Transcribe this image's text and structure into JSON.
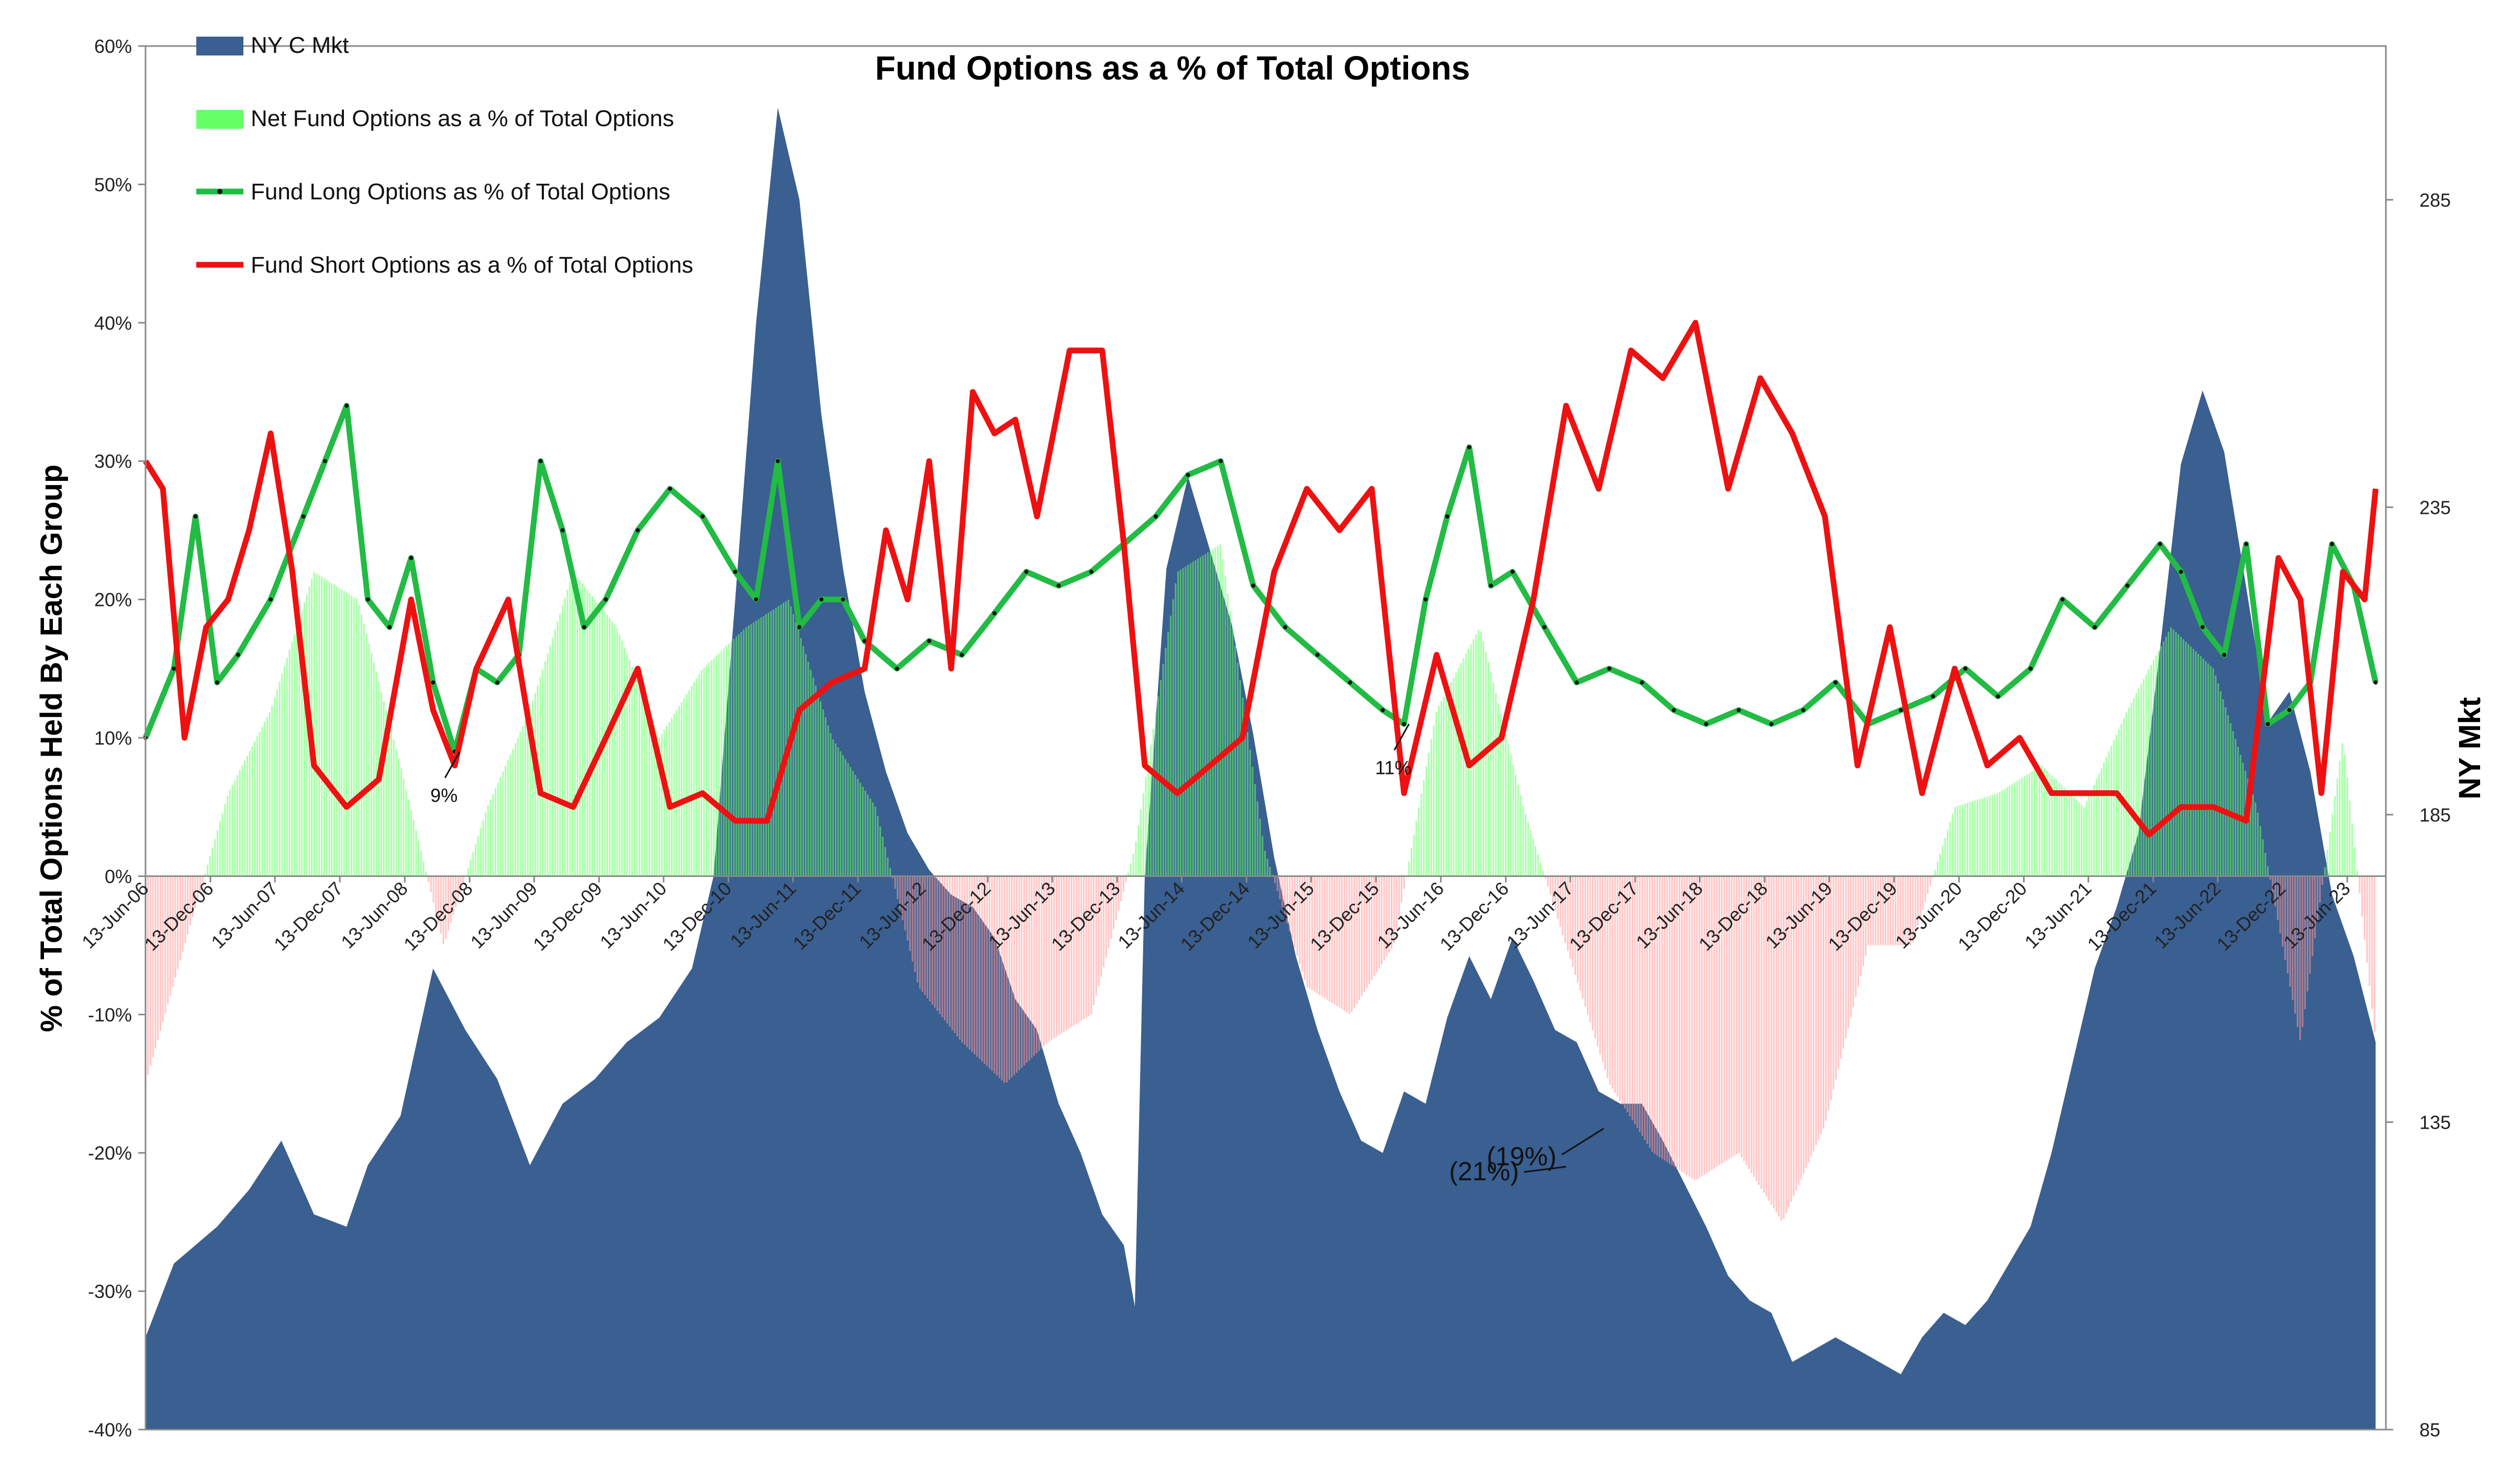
{
  "chart_data": {
    "type": "area",
    "title": "Fund Options as a % of Total Options",
    "ylabel": "% of Total Options Held By Each Group",
    "y2label": "NY Mkt",
    "ylim": [
      -0.4,
      0.6
    ],
    "y2lim": [
      85,
      310
    ],
    "yticks": [
      -0.4,
      -0.3,
      -0.2,
      -0.1,
      0,
      0.1,
      0.2,
      0.3,
      0.4,
      0.5,
      0.6
    ],
    "ytick_labels": [
      "-40%",
      "-30%",
      "-20%",
      "-10%",
      "0%",
      "10%",
      "20%",
      "30%",
      "40%",
      "50%",
      "60%"
    ],
    "y2ticks": [
      85,
      135,
      185,
      235,
      285
    ],
    "y2tick_labels": [
      "85",
      "135",
      "185",
      "235",
      "285"
    ],
    "xlim": [
      "2006-06-13",
      "2023-09-30"
    ],
    "x_ticks": [
      "2006-06-13",
      "2006-12-13",
      "2007-06-13",
      "2007-12-13",
      "2008-06-13",
      "2008-12-13",
      "2009-06-13",
      "2009-12-13",
      "2010-06-13",
      "2010-12-13",
      "2011-06-13",
      "2011-12-13",
      "2012-06-13",
      "2012-12-13",
      "2013-06-13",
      "2013-12-13",
      "2014-06-13",
      "2014-12-13",
      "2015-06-13",
      "2015-12-13",
      "2016-06-13",
      "2016-12-13",
      "2017-06-13",
      "2017-12-13",
      "2018-06-13",
      "2018-12-13",
      "2019-06-13",
      "2019-12-13",
      "2020-06-13",
      "2020-12-13",
      "2021-06-13",
      "2021-12-13",
      "2022-06-13",
      "2022-12-13",
      "2023-06-13"
    ],
    "x_tick_labels": [
      "13-Jun-06",
      "13-Dec-06",
      "13-Jun-07",
      "13-Dec-07",
      "13-Jun-08",
      "13-Dec-08",
      "13-Jun-09",
      "13-Dec-09",
      "13-Jun-10",
      "13-Dec-10",
      "13-Jun-11",
      "13-Dec-11",
      "13-Jun-12",
      "13-Dec-12",
      "13-Jun-13",
      "13-Dec-13",
      "13-Jun-14",
      "13-Dec-14",
      "13-Jun-15",
      "13-Dec-15",
      "13-Jun-16",
      "13-Dec-16",
      "13-Jun-17",
      "13-Dec-17",
      "13-Jun-18",
      "13-Dec-18",
      "13-Jun-19",
      "13-Dec-19",
      "13-Jun-20",
      "13-Dec-20",
      "13-Jun-21",
      "13-Dec-21",
      "13-Jun-22",
      "13-Dec-22",
      "13-Jun-23"
    ],
    "legend_position": "top-left",
    "grid": false,
    "series": [
      {
        "name": "NY C Mkt",
        "type": "area",
        "axis": "right",
        "color": "#3a5f91",
        "x": [
          "2006-06-13",
          "2006-09-01",
          "2007-01-01",
          "2007-04-01",
          "2007-07-01",
          "2007-10-01",
          "2008-01-01",
          "2008-03-01",
          "2008-06-01",
          "2008-09-01",
          "2008-12-01",
          "2009-03-01",
          "2009-06-01",
          "2009-09-01",
          "2009-12-01",
          "2010-03-01",
          "2010-06-01",
          "2010-09-01",
          "2010-11-01",
          "2011-01-01",
          "2011-03-01",
          "2011-05-01",
          "2011-07-01",
          "2011-09-01",
          "2011-11-01",
          "2012-01-01",
          "2012-03-01",
          "2012-05-01",
          "2012-07-01",
          "2012-09-01",
          "2012-11-01",
          "2013-01-01",
          "2013-03-01",
          "2013-05-01",
          "2013-07-01",
          "2013-09-01",
          "2013-11-01",
          "2014-01-01",
          "2014-02-01",
          "2014-03-01",
          "2014-05-01",
          "2014-07-01",
          "2014-09-01",
          "2014-11-01",
          "2015-01-01",
          "2015-03-01",
          "2015-05-01",
          "2015-07-01",
          "2015-09-01",
          "2015-11-01",
          "2016-01-01",
          "2016-03-01",
          "2016-05-01",
          "2016-07-01",
          "2016-09-01",
          "2016-11-01",
          "2017-01-01",
          "2017-03-01",
          "2017-05-01",
          "2017-07-01",
          "2017-09-01",
          "2017-11-01",
          "2018-01-01",
          "2018-03-01",
          "2018-05-01",
          "2018-07-01",
          "2018-09-01",
          "2018-11-01",
          "2019-01-01",
          "2019-03-01",
          "2019-05-01",
          "2019-07-01",
          "2019-09-01",
          "2019-11-01",
          "2020-01-01",
          "2020-03-01",
          "2020-05-01",
          "2020-07-01",
          "2020-09-01",
          "2020-11-01",
          "2021-01-01",
          "2021-03-01",
          "2021-05-01",
          "2021-07-01",
          "2021-09-01",
          "2021-11-01",
          "2022-01-01",
          "2022-03-01",
          "2022-05-01",
          "2022-07-01",
          "2022-09-01",
          "2022-11-01",
          "2023-01-01",
          "2023-03-01",
          "2023-05-01",
          "2023-07-01",
          "2023-09-01"
        ],
        "values": [
          100,
          112,
          118,
          124,
          132,
          120,
          118,
          128,
          136,
          160,
          150,
          142,
          128,
          138,
          142,
          148,
          152,
          160,
          175,
          220,
          265,
          300,
          285,
          250,
          225,
          205,
          192,
          182,
          176,
          172,
          170,
          165,
          155,
          150,
          138,
          130,
          120,
          115,
          105,
          175,
          225,
          240,
          228,
          216,
          198,
          178,
          162,
          150,
          140,
          132,
          130,
          140,
          138,
          152,
          162,
          155,
          165,
          158,
          150,
          148,
          140,
          138,
          138,
          132,
          125,
          118,
          110,
          106,
          104,
          96,
          98,
          100,
          98,
          96,
          94,
          100,
          104,
          102,
          106,
          112,
          118,
          130,
          145,
          160,
          170,
          182,
          212,
          242,
          254,
          244,
          222,
          200,
          205,
          192,
          172,
          162,
          148
        ]
      },
      {
        "name": "Net Fund Options as a % of Total Options",
        "type": "bar",
        "axis": "left",
        "positive_color": "#66ff66",
        "negative_color": "#ff9999",
        "x": [
          "2006-06-13",
          "2006-10-01",
          "2007-02-01",
          "2007-06-01",
          "2007-10-01",
          "2008-02-01",
          "2008-06-01",
          "2008-10-01",
          "2009-02-01",
          "2009-06-01",
          "2009-10-01",
          "2010-02-01",
          "2010-06-01",
          "2010-10-01",
          "2011-02-01",
          "2011-06-01",
          "2011-10-01",
          "2012-02-01",
          "2012-06-01",
          "2012-10-01",
          "2013-02-01",
          "2013-06-01",
          "2013-10-01",
          "2014-02-01",
          "2014-06-01",
          "2014-10-01",
          "2015-02-01",
          "2015-06-01",
          "2015-10-01",
          "2016-02-01",
          "2016-06-01",
          "2016-10-01",
          "2017-02-01",
          "2017-06-01",
          "2017-10-01",
          "2018-02-01",
          "2018-06-01",
          "2018-10-01",
          "2019-02-01",
          "2019-06-01",
          "2019-10-01",
          "2020-02-01",
          "2020-06-01",
          "2020-10-01",
          "2021-02-01",
          "2021-06-01",
          "2021-10-01",
          "2022-02-01",
          "2022-06-01",
          "2022-10-01",
          "2023-02-01",
          "2023-06-01",
          "2023-09-01"
        ],
        "values": [
          -0.15,
          -0.05,
          0.06,
          0.12,
          0.22,
          0.2,
          0.08,
          -0.05,
          0.05,
          0.12,
          0.22,
          0.18,
          0.1,
          0.15,
          0.18,
          0.2,
          0.1,
          0.05,
          -0.08,
          -0.12,
          -0.15,
          -0.12,
          -0.1,
          0.02,
          0.22,
          0.24,
          0.02,
          -0.08,
          -0.1,
          -0.05,
          0.12,
          0.18,
          0.05,
          -0.05,
          -0.15,
          -0.2,
          -0.22,
          -0.2,
          -0.25,
          -0.18,
          -0.05,
          -0.05,
          0.05,
          0.06,
          0.08,
          0.05,
          0.12,
          0.18,
          0.15,
          0.05,
          -0.12,
          0.1,
          -0.12
        ]
      },
      {
        "name": "Fund Long Options as % of Total Options",
        "type": "line",
        "axis": "left",
        "color": "#22bb44",
        "x": [
          "2006-06-13",
          "2006-09-01",
          "2006-11-01",
          "2007-01-01",
          "2007-03-01",
          "2007-06-01",
          "2007-09-01",
          "2007-11-01",
          "2008-01-01",
          "2008-03-01",
          "2008-05-01",
          "2008-07-01",
          "2008-09-01",
          "2008-11-01",
          "2009-01-01",
          "2009-03-01",
          "2009-05-01",
          "2009-07-01",
          "2009-09-01",
          "2009-11-01",
          "2010-01-01",
          "2010-04-01",
          "2010-07-01",
          "2010-10-01",
          "2011-01-01",
          "2011-03-01",
          "2011-05-01",
          "2011-07-01",
          "2011-09-01",
          "2011-11-01",
          "2012-01-01",
          "2012-04-01",
          "2012-07-01",
          "2012-10-01",
          "2013-01-01",
          "2013-04-01",
          "2013-07-01",
          "2013-10-01",
          "2014-01-01",
          "2014-04-01",
          "2014-07-01",
          "2014-10-01",
          "2015-01-01",
          "2015-04-01",
          "2015-07-01",
          "2015-10-01",
          "2016-01-01",
          "2016-03-01",
          "2016-05-01",
          "2016-07-01",
          "2016-09-01",
          "2016-11-01",
          "2017-01-01",
          "2017-04-01",
          "2017-07-01",
          "2017-10-01",
          "2018-01-01",
          "2018-04-01",
          "2018-07-01",
          "2018-10-01",
          "2019-01-01",
          "2019-04-01",
          "2019-07-01",
          "2019-10-01",
          "2020-01-01",
          "2020-04-01",
          "2020-07-01",
          "2020-10-01",
          "2021-01-01",
          "2021-04-01",
          "2021-07-01",
          "2021-10-01",
          "2022-01-01",
          "2022-03-01",
          "2022-05-01",
          "2022-07-01",
          "2022-09-01",
          "2022-11-01",
          "2023-01-01",
          "2023-03-01",
          "2023-05-01",
          "2023-07-01",
          "2023-09-01"
        ],
        "values": [
          0.1,
          0.15,
          0.26,
          0.14,
          0.16,
          0.2,
          0.26,
          0.3,
          0.34,
          0.2,
          0.18,
          0.23,
          0.14,
          0.09,
          0.15,
          0.14,
          0.16,
          0.3,
          0.25,
          0.18,
          0.2,
          0.25,
          0.28,
          0.26,
          0.22,
          0.2,
          0.3,
          0.18,
          0.2,
          0.2,
          0.17,
          0.15,
          0.17,
          0.16,
          0.19,
          0.22,
          0.21,
          0.22,
          0.24,
          0.26,
          0.29,
          0.3,
          0.21,
          0.18,
          0.16,
          0.14,
          0.12,
          0.11,
          0.2,
          0.26,
          0.31,
          0.21,
          0.22,
          0.18,
          0.14,
          0.15,
          0.14,
          0.12,
          0.11,
          0.12,
          0.11,
          0.12,
          0.14,
          0.11,
          0.12,
          0.13,
          0.15,
          0.13,
          0.15,
          0.2,
          0.18,
          0.21,
          0.24,
          0.22,
          0.18,
          0.16,
          0.24,
          0.11,
          0.12,
          0.14,
          0.24,
          0.21,
          0.14
        ]
      },
      {
        "name": "Fund Short Options as a % of Total Options",
        "type": "line",
        "axis": "left",
        "color": "#ee1111",
        "x": [
          "2006-06-13",
          "2006-08-01",
          "2006-10-01",
          "2006-12-01",
          "2007-02-01",
          "2007-04-01",
          "2007-06-01",
          "2007-08-01",
          "2007-10-01",
          "2008-01-01",
          "2008-04-01",
          "2008-07-01",
          "2008-09-01",
          "2008-11-01",
          "2009-01-01",
          "2009-04-01",
          "2009-07-01",
          "2009-10-01",
          "2010-01-01",
          "2010-04-01",
          "2010-07-01",
          "2010-10-01",
          "2011-01-01",
          "2011-04-01",
          "2011-07-01",
          "2011-10-01",
          "2012-01-01",
          "2012-03-01",
          "2012-05-01",
          "2012-07-01",
          "2012-09-01",
          "2012-11-01",
          "2013-01-01",
          "2013-03-01",
          "2013-05-01",
          "2013-08-01",
          "2013-11-01",
          "2014-01-01",
          "2014-03-01",
          "2014-06-01",
          "2014-09-01",
          "2014-12-01",
          "2015-03-01",
          "2015-06-01",
          "2015-09-01",
          "2015-12-01",
          "2016-03-01",
          "2016-06-01",
          "2016-09-01",
          "2016-12-01",
          "2017-03-01",
          "2017-06-01",
          "2017-09-01",
          "2017-12-01",
          "2018-03-01",
          "2018-06-01",
          "2018-09-01",
          "2018-12-01",
          "2019-03-01",
          "2019-06-01",
          "2019-09-01",
          "2019-12-01",
          "2020-03-01",
          "2020-06-01",
          "2020-09-01",
          "2020-12-01",
          "2021-03-01",
          "2021-06-01",
          "2021-09-01",
          "2021-12-01",
          "2022-03-01",
          "2022-06-01",
          "2022-09-01",
          "2022-12-01",
          "2023-02-01",
          "2023-04-01",
          "2023-06-01",
          "2023-08-01",
          "2023-09-01"
        ],
        "values": [
          0.3,
          0.28,
          0.1,
          0.18,
          0.2,
          0.25,
          0.32,
          0.22,
          0.08,
          0.05,
          0.07,
          0.2,
          0.12,
          0.08,
          0.15,
          0.2,
          0.06,
          0.05,
          0.1,
          0.15,
          0.05,
          0.06,
          0.04,
          0.04,
          0.12,
          0.14,
          0.15,
          0.25,
          0.2,
          0.3,
          0.15,
          0.35,
          0.32,
          0.33,
          0.26,
          0.38,
          0.38,
          0.24,
          0.08,
          0.06,
          0.08,
          0.1,
          0.22,
          0.28,
          0.25,
          0.28,
          0.06,
          0.16,
          0.08,
          0.1,
          0.2,
          0.34,
          0.28,
          0.38,
          0.36,
          0.4,
          0.28,
          0.36,
          0.32,
          0.26,
          0.08,
          0.18,
          0.06,
          0.15,
          0.08,
          0.1,
          0.06,
          0.06,
          0.06,
          0.03,
          0.05,
          0.05,
          0.04,
          0.23,
          0.2,
          0.06,
          0.22,
          0.2,
          0.28
        ]
      }
    ],
    "annotations": [
      {
        "text": "9%",
        "x": "2008-11-15",
        "y": 0.09,
        "style": "small"
      },
      {
        "text": "11%",
        "x": "2016-03-15",
        "y": 0.11,
        "style": "small"
      },
      {
        "text": "(21%)",
        "x": "2017-06-01",
        "y": -0.21,
        "style": "big"
      },
      {
        "text": "(19%)",
        "x": "2017-09-15",
        "y": -0.19,
        "style": "big"
      }
    ]
  }
}
